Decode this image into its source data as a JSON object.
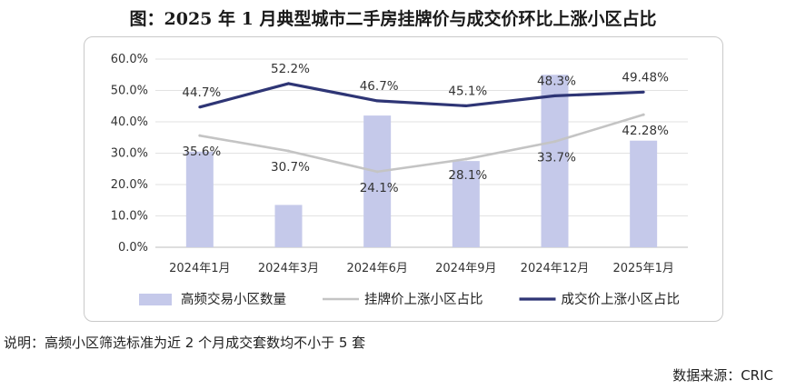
{
  "title": "图：2025 年 1 月典型城市二手房挂牌价与成交价环比上涨小区占比",
  "note": "说明：高频小区筛选标准为近 2 个月成交套数均不小于 5 套",
  "source": "数据来源：CRIC",
  "chart_data": {
    "type": "bar+line",
    "categories": [
      "2024年1月",
      "2024年3月",
      "2024年6月",
      "2024年9月",
      "2024年12月",
      "2025年1月"
    ],
    "ylim": [
      0,
      60
    ],
    "yticks": [
      "0.0%",
      "10.0%",
      "20.0%",
      "30.0%",
      "40.0%",
      "50.0%",
      "60.0%"
    ],
    "grid": true,
    "legend_position": "bottom",
    "series": [
      {
        "name": "高频交易小区数量",
        "type": "bar",
        "color": "#c5c9ea",
        "values": [
          30.5,
          13.5,
          42,
          27.5,
          55,
          34
        ],
        "labels": []
      },
      {
        "name": "挂牌价上涨小区占比",
        "type": "line",
        "color": "#c4c4c4",
        "values": [
          35.6,
          30.7,
          24.1,
          28.1,
          33.7,
          42.28
        ],
        "labels": [
          "35.6%",
          "30.7%",
          "24.1%",
          "28.1%",
          "33.7%",
          "42.28%"
        ]
      },
      {
        "name": "成交价上涨小区占比",
        "type": "line",
        "color": "#2e3575",
        "values": [
          44.7,
          52.2,
          46.7,
          45.1,
          48.3,
          49.48
        ],
        "labels": [
          "44.7%",
          "52.2%",
          "46.7%",
          "45.1%",
          "48.3%",
          "49.48%"
        ]
      }
    ]
  }
}
